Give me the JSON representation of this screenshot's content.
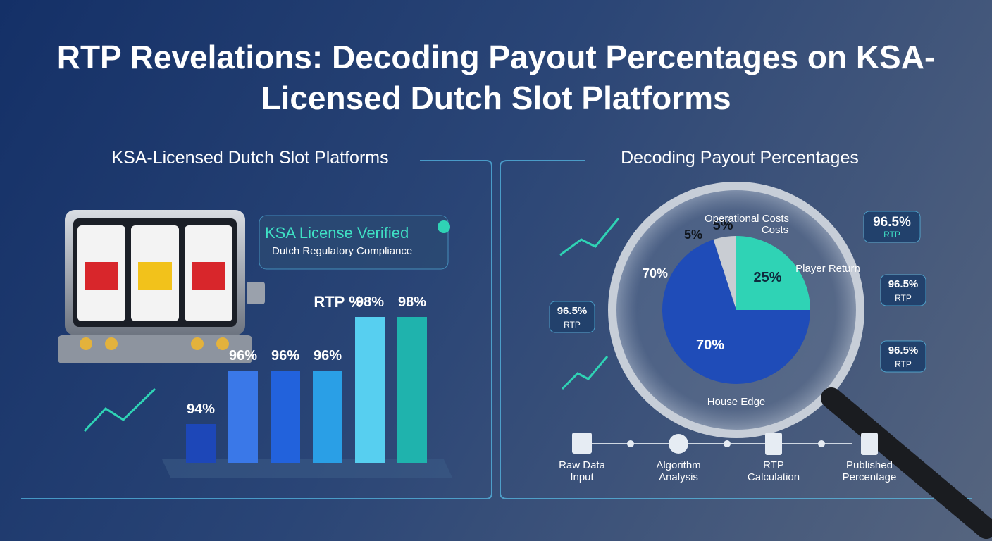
{
  "title": "RTP Revelations: Decoding Payout Percentages on KSA-Licensed Dutch Slot Platforms",
  "left_panel": {
    "heading": "KSA-Licensed Dutch Slot Platforms",
    "badge": {
      "title": "KSA License Verified",
      "subtitle": "Dutch Regulatory Compliance"
    }
  },
  "right_panel": {
    "heading": "Decoding Payout Percentages",
    "callouts": [
      {
        "value": "96.5%",
        "label": "RTP"
      },
      {
        "value": "96.5%",
        "label": "RTP"
      },
      {
        "value": "96.5%",
        "label": "RTP"
      },
      {
        "value": "96.5%",
        "label": "RTP"
      }
    ],
    "steps": [
      "Raw Data Input",
      "Algorithm Analysis",
      "RTP Calculation",
      "Published Percentage"
    ]
  },
  "chart_data": [
    {
      "type": "bar",
      "title": "RTP %",
      "values": [
        94,
        96,
        96,
        96,
        98,
        98
      ],
      "value_labels": [
        "94%",
        "96%",
        "96%",
        "96%",
        "98%",
        "98%"
      ],
      "colors": [
        "#1d47b8",
        "#3a78e8",
        "#2262dc",
        "#2a9fe6",
        "#57cff0",
        "#1fb3ad"
      ]
    },
    {
      "type": "pie",
      "categories": [
        "Operational Costs",
        "Player Return",
        "House Edge"
      ],
      "values": [
        5,
        25,
        70
      ],
      "value_labels": [
        "5%",
        "25%",
        "70%"
      ],
      "colors": [
        "#c9cdd3",
        "#2fd3b5",
        "#1f4cb8"
      ],
      "annotations": [
        "5%",
        "Costs",
        "70%"
      ]
    }
  ]
}
